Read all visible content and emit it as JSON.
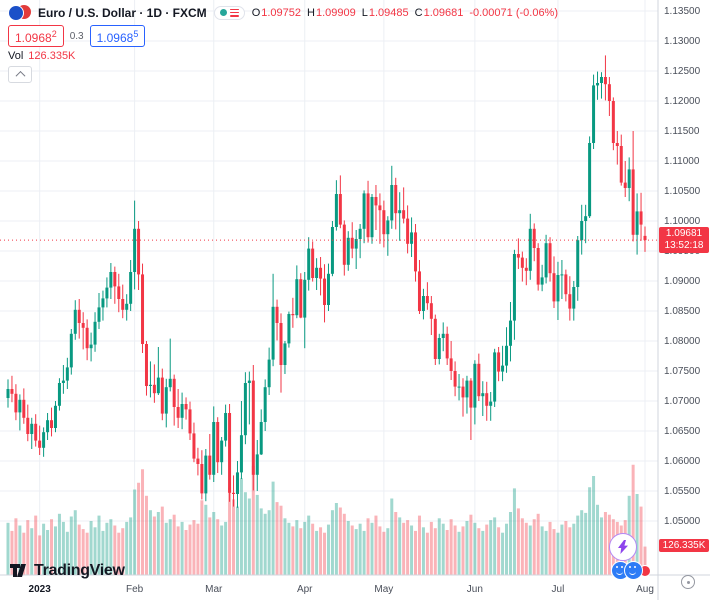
{
  "header": {
    "symbol_title": "Euro / U.S. Dollar · 1D · FXCM",
    "ohlc": [
      {
        "label": "O",
        "value": "1.09752"
      },
      {
        "label": "H",
        "value": "1.09909"
      },
      {
        "label": "L",
        "value": "1.09485"
      },
      {
        "label": "C",
        "value": "1.09681"
      }
    ],
    "change": "-0.00071 (-0.06%)",
    "sell_price_main": "1.0968",
    "sell_price_sup": "2",
    "spread": "0.3",
    "buy_price_main": "1.0968",
    "buy_price_sup": "5",
    "vol_label": "Vol",
    "vol_value": "126.335K"
  },
  "footer": {
    "logo_text": "TradingView"
  },
  "price_label": {
    "value": "1.09681",
    "countdown": "13:52:18"
  },
  "volume_label": {
    "value": "126.335K"
  },
  "chart_data": {
    "type": "candlestick",
    "title": "Euro / U.S. Dollar, 1D, FXCM",
    "last": 1.09681,
    "countdown": "13:52:18",
    "current_volume_k": 126.335,
    "ylim": [
      1.048,
      1.1355
    ],
    "grid": true,
    "legend_position": "none",
    "colors": {
      "up": "#089981",
      "down": "#F23645",
      "vol_up": "rgba(8,153,129,0.38)",
      "vol_down": "rgba(242,54,69,0.38)",
      "accent_red": "#F23645",
      "accent_blue": "#2962FF"
    },
    "y_ticks": [
      "1.13500",
      "1.13000",
      "1.12500",
      "1.12000",
      "1.11500",
      "1.11000",
      "1.10500",
      "1.10000",
      "1.09500",
      "1.09000",
      "1.08500",
      "1.08000",
      "1.07500",
      "1.07000",
      "1.06500",
      "1.06000",
      "1.05500",
      "1.05000"
    ],
    "x_ticks": [
      {
        "label": "2023",
        "index": 8,
        "year": true
      },
      {
        "label": "Feb",
        "index": 32
      },
      {
        "label": "Mar",
        "index": 52
      },
      {
        "label": "Apr",
        "index": 75
      },
      {
        "label": "May",
        "index": 95
      },
      {
        "label": "Jun",
        "index": 118
      },
      {
        "label": "Jul",
        "index": 139
      },
      {
        "label": "Aug",
        "index": 161
      }
    ],
    "candles": [
      [
        1.0705,
        1.0736,
        1.0689,
        1.072
      ],
      [
        1.072,
        1.0742,
        1.0698,
        1.0712
      ],
      [
        1.0712,
        1.0728,
        1.0668,
        1.0681
      ],
      [
        1.0681,
        1.0711,
        1.0651,
        1.0702
      ],
      [
        1.0702,
        1.0721,
        1.0662,
        1.0672
      ],
      [
        1.0672,
        1.0694,
        1.0633,
        1.0645
      ],
      [
        1.0645,
        1.0672,
        1.062,
        1.0662
      ],
      [
        1.0662,
        1.0678,
        1.0624,
        1.0634
      ],
      [
        1.0634,
        1.0659,
        1.061,
        1.0622
      ],
      [
        1.0622,
        1.0656,
        1.0607,
        1.0648
      ],
      [
        1.0648,
        1.068,
        1.0635,
        1.0668
      ],
      [
        1.0668,
        1.0689,
        1.0641,
        1.0655
      ],
      [
        1.0655,
        1.07,
        1.0648,
        1.0692
      ],
      [
        1.0692,
        1.0738,
        1.0684,
        1.073
      ],
      [
        1.073,
        1.076,
        1.0712,
        1.0734
      ],
      [
        1.0734,
        1.0772,
        1.072,
        1.0756
      ],
      [
        1.0756,
        1.082,
        1.0744,
        1.0812
      ],
      [
        1.0812,
        1.0868,
        1.0802,
        1.0852
      ],
      [
        1.0852,
        1.087,
        1.0804,
        1.083
      ],
      [
        1.083,
        1.0848,
        1.0786,
        1.0822
      ],
      [
        1.0822,
        1.0836,
        1.0768,
        1.0788
      ],
      [
        1.0788,
        1.0814,
        1.0766,
        1.0794
      ],
      [
        1.0794,
        1.0848,
        1.0782,
        1.0832
      ],
      [
        1.0832,
        1.088,
        1.082,
        1.0856
      ],
      [
        1.0856,
        1.0884,
        1.0834,
        1.0871
      ],
      [
        1.0871,
        1.0906,
        1.0856,
        1.0889
      ],
      [
        1.0889,
        1.093,
        1.087,
        1.0915
      ],
      [
        1.0915,
        1.0924,
        1.0862,
        1.0891
      ],
      [
        1.0891,
        1.0912,
        1.0848,
        1.087
      ],
      [
        1.087,
        1.0894,
        1.0838,
        1.0852
      ],
      [
        1.0852,
        1.0878,
        1.0834,
        1.0862
      ],
      [
        1.0862,
        1.0935,
        1.085,
        1.0915
      ],
      [
        1.0915,
        1.1034,
        1.0886,
        1.0987
      ],
      [
        1.0987,
        1.1,
        1.0885,
        1.0911
      ],
      [
        1.0911,
        1.0929,
        1.078,
        1.0795
      ],
      [
        1.0795,
        1.08,
        1.0709,
        1.0725
      ],
      [
        1.0725,
        1.0766,
        1.0706,
        1.0727
      ],
      [
        1.0727,
        1.0761,
        1.0697,
        1.0713
      ],
      [
        1.0713,
        1.079,
        1.071,
        1.0739
      ],
      [
        1.0739,
        1.0754,
        1.0668,
        1.0679
      ],
      [
        1.0679,
        1.0737,
        1.0656,
        1.0723
      ],
      [
        1.0723,
        1.0804,
        1.0716,
        1.0737
      ],
      [
        1.0737,
        1.0744,
        1.0659,
        1.069
      ],
      [
        1.069,
        1.072,
        1.0655,
        1.0672
      ],
      [
        1.0672,
        1.0714,
        1.0653,
        1.0695
      ],
      [
        1.0695,
        1.0706,
        1.0669,
        1.0686
      ],
      [
        1.0686,
        1.0699,
        1.0635,
        1.0646
      ],
      [
        1.0646,
        1.0664,
        1.0598,
        1.0604
      ],
      [
        1.0604,
        1.0622,
        1.0576,
        1.0595
      ],
      [
        1.0595,
        1.0618,
        1.0536,
        1.0546
      ],
      [
        1.0546,
        1.062,
        1.0533,
        1.0609
      ],
      [
        1.0609,
        1.0645,
        1.0569,
        1.0577
      ],
      [
        1.0577,
        1.0691,
        1.0565,
        1.0665
      ],
      [
        1.0665,
        1.0673,
        1.058,
        1.0598
      ],
      [
        1.0598,
        1.064,
        1.0577,
        1.0634
      ],
      [
        1.0634,
        1.0694,
        1.0624,
        1.068
      ],
      [
        1.068,
        1.0695,
        1.0532,
        1.0547
      ],
      [
        1.0547,
        1.0576,
        1.0524,
        1.0545
      ],
      [
        1.0545,
        1.06,
        1.0522,
        1.0581
      ],
      [
        1.0581,
        1.07,
        1.057,
        1.0643
      ],
      [
        1.0643,
        1.0748,
        1.0628,
        1.073
      ],
      [
        1.073,
        1.0749,
        1.0661,
        1.0734
      ],
      [
        1.0734,
        1.076,
        1.0551,
        1.0577
      ],
      [
        1.0577,
        1.0635,
        1.055,
        1.0611
      ],
      [
        1.0611,
        1.0686,
        1.061,
        1.0665
      ],
      [
        1.0665,
        1.0736,
        1.065,
        1.0723
      ],
      [
        1.0723,
        1.0789,
        1.071,
        1.0769
      ],
      [
        1.0769,
        1.0912,
        1.0758,
        1.0857
      ],
      [
        1.0857,
        1.0869,
        1.0801,
        1.083
      ],
      [
        1.083,
        1.0846,
        1.0714,
        1.076
      ],
      [
        1.076,
        1.08,
        1.0745,
        1.0796
      ],
      [
        1.0796,
        1.0849,
        1.0789,
        1.0845
      ],
      [
        1.0845,
        1.0872,
        1.0822,
        1.0843
      ],
      [
        1.0843,
        1.0926,
        1.0838,
        1.0903
      ],
      [
        1.0903,
        1.0913,
        1.0838,
        1.0839
      ],
      [
        1.0839,
        1.0915,
        1.0788,
        1.0902
      ],
      [
        1.0902,
        1.0973,
        1.0884,
        1.0954
      ],
      [
        1.0954,
        1.0966,
        1.0899,
        1.0905
      ],
      [
        1.0905,
        1.0938,
        1.0885,
        1.0922
      ],
      [
        1.0922,
        1.094,
        1.0876,
        1.0904
      ],
      [
        1.0904,
        1.0928,
        1.0831,
        1.086
      ],
      [
        1.086,
        1.0929,
        1.085,
        1.0912
      ],
      [
        1.0912,
        1.1,
        1.0908,
        1.099
      ],
      [
        1.099,
        1.1068,
        1.0984,
        1.1045
      ],
      [
        1.1045,
        1.1076,
        1.0988,
        1.0994
      ],
      [
        1.0994,
        1.1001,
        1.0909,
        1.0927
      ],
      [
        1.0927,
        1.0983,
        1.0917,
        1.0972
      ],
      [
        1.0972,
        1.0998,
        1.0938,
        1.0954
      ],
      [
        1.0954,
        1.0985,
        1.092,
        1.097
      ],
      [
        1.097,
        1.0995,
        1.0938,
        1.0987
      ],
      [
        1.0987,
        1.1051,
        1.0963,
        1.1046
      ],
      [
        1.1046,
        1.1067,
        1.0964,
        1.0973
      ],
      [
        1.0973,
        1.1045,
        1.0962,
        1.104
      ],
      [
        1.104,
        1.106,
        1.0985,
        1.1026
      ],
      [
        1.1026,
        1.1046,
        1.0962,
        1.1018
      ],
      [
        1.1018,
        1.1034,
        1.0956,
        1.0978
      ],
      [
        1.0978,
        1.1008,
        1.0942,
        1.1001
      ],
      [
        1.1001,
        1.1092,
        1.0987,
        1.106
      ],
      [
        1.106,
        1.1072,
        1.0986,
        1.1013
      ],
      [
        1.1013,
        1.1048,
        1.0967,
        1.1018
      ],
      [
        1.1018,
        1.1056,
        1.0996,
        1.1004
      ],
      [
        1.1004,
        1.1026,
        1.0946,
        1.0962
      ],
      [
        1.0962,
        1.1006,
        1.094,
        1.0981
      ],
      [
        1.0981,
        1.0995,
        1.0899,
        1.0916
      ],
      [
        1.0916,
        1.0935,
        1.0845,
        1.085
      ],
      [
        1.085,
        1.0887,
        1.0836,
        1.0875
      ],
      [
        1.0875,
        1.0898,
        1.0852,
        1.0863
      ],
      [
        1.0863,
        1.0875,
        1.081,
        1.0837
      ],
      [
        1.0837,
        1.0844,
        1.076,
        1.077
      ],
      [
        1.077,
        1.0812,
        1.0761,
        1.0805
      ],
      [
        1.0805,
        1.0831,
        1.0783,
        1.0812
      ],
      [
        1.0812,
        1.0824,
        1.076,
        1.0771
      ],
      [
        1.0771,
        1.08,
        1.0735,
        1.075
      ],
      [
        1.075,
        1.0766,
        1.0708,
        1.0724
      ],
      [
        1.0724,
        1.0745,
        1.0701,
        1.0724
      ],
      [
        1.0724,
        1.0738,
        1.0674,
        1.0706
      ],
      [
        1.0706,
        1.0742,
        1.0679,
        1.0734
      ],
      [
        1.0734,
        1.0738,
        1.0635,
        1.0689
      ],
      [
        1.0689,
        1.0768,
        1.0661,
        1.0762
      ],
      [
        1.0762,
        1.0779,
        1.07,
        1.0708
      ],
      [
        1.0708,
        1.0733,
        1.0675,
        1.0713
      ],
      [
        1.0713,
        1.0732,
        1.0667,
        1.0692
      ],
      [
        1.0692,
        1.0715,
        1.0667,
        1.0699
      ],
      [
        1.0699,
        1.0787,
        1.069,
        1.0781
      ],
      [
        1.0781,
        1.079,
        1.0733,
        1.0749
      ],
      [
        1.0749,
        1.0792,
        1.0733,
        1.0759
      ],
      [
        1.0759,
        1.0823,
        1.0747,
        1.0792
      ],
      [
        1.0792,
        1.0865,
        1.0766,
        1.0834
      ],
      [
        1.0834,
        1.0952,
        1.0802,
        1.0945
      ],
      [
        1.0945,
        1.0971,
        1.092,
        1.0939
      ],
      [
        1.0939,
        1.0949,
        1.0899,
        1.0922
      ],
      [
        1.0922,
        1.0938,
        1.0893,
        1.0917
      ],
      [
        1.0917,
        1.1012,
        1.0902,
        1.0987
      ],
      [
        1.0987,
        1.0996,
        1.0933,
        1.0955
      ],
      [
        1.0955,
        1.0963,
        1.0884,
        1.0894
      ],
      [
        1.0894,
        1.0927,
        1.0883,
        1.0906
      ],
      [
        1.0906,
        1.0977,
        1.0896,
        1.0963
      ],
      [
        1.0963,
        1.0973,
        1.0899,
        1.0913
      ],
      [
        1.0913,
        1.0941,
        1.0855,
        1.0866
      ],
      [
        1.0866,
        1.0932,
        1.0835,
        1.091
      ],
      [
        1.091,
        1.0935,
        1.087,
        1.0911
      ],
      [
        1.0911,
        1.0919,
        1.0866,
        1.0878
      ],
      [
        1.0878,
        1.0908,
        1.0834,
        1.0854
      ],
      [
        1.0854,
        1.09,
        1.0834,
        1.089
      ],
      [
        1.089,
        1.0975,
        1.0867,
        1.0968
      ],
      [
        1.0968,
        1.1027,
        1.0944,
        1.1
      ],
      [
        1.1,
        1.1027,
        1.0963,
        1.1008
      ],
      [
        1.1008,
        1.1141,
        1.1005,
        1.113
      ],
      [
        1.113,
        1.1244,
        1.112,
        1.1226
      ],
      [
        1.1226,
        1.1249,
        1.1202,
        1.123
      ],
      [
        1.123,
        1.1248,
        1.1204,
        1.124
      ],
      [
        1.124,
        1.1276,
        1.1201,
        1.1228
      ],
      [
        1.1228,
        1.124,
        1.1175,
        1.12
      ],
      [
        1.12,
        1.1206,
        1.1118,
        1.113
      ],
      [
        1.113,
        1.115,
        1.1094,
        1.1125
      ],
      [
        1.1125,
        1.1144,
        1.1059,
        1.1064
      ],
      [
        1.1064,
        1.11,
        1.104,
        1.1055
      ],
      [
        1.1055,
        1.1106,
        1.1033,
        1.1086
      ],
      [
        1.1086,
        1.115,
        1.0966,
        1.0977
      ],
      [
        1.0977,
        1.1046,
        1.0944,
        1.1016
      ],
      [
        1.1016,
        1.1047,
        1.0967,
        1.0994
      ],
      [
        1.09752,
        1.09909,
        1.09485,
        1.09681
      ]
    ],
    "volumes_k": [
      232,
      196,
      252,
      220,
      188,
      244,
      208,
      264,
      176,
      228,
      200,
      248,
      216,
      272,
      236,
      192,
      260,
      288,
      224,
      204,
      188,
      240,
      212,
      264,
      196,
      232,
      248,
      220,
      188,
      208,
      236,
      256,
      380,
      410,
      470,
      352,
      288,
      260,
      280,
      304,
      232,
      248,
      268,
      216,
      236,
      200,
      224,
      244,
      228,
      332,
      312,
      256,
      280,
      248,
      220,
      236,
      390,
      336,
      304,
      430,
      368,
      340,
      485,
      356,
      296,
      272,
      288,
      415,
      324,
      308,
      252,
      232,
      216,
      244,
      208,
      236,
      264,
      228,
      196,
      212,
      188,
      224,
      288,
      320,
      300,
      272,
      240,
      220,
      204,
      228,
      196,
      252,
      232,
      264,
      216,
      192,
      208,
      340,
      280,
      256,
      232,
      244,
      220,
      196,
      264,
      212,
      188,
      236,
      208,
      252,
      228,
      200,
      248,
      220,
      192,
      216,
      240,
      268,
      232,
      208,
      196,
      224,
      244,
      256,
      212,
      188,
      228,
      280,
      385,
      296,
      252,
      232,
      220,
      248,
      272,
      216,
      196,
      236,
      204,
      188,
      224,
      240,
      212,
      228,
      264,
      288,
      276,
      390,
      440,
      312,
      256,
      280,
      268,
      248,
      236,
      220,
      244,
      352,
      490,
      360,
      304,
      126.335
    ]
  }
}
